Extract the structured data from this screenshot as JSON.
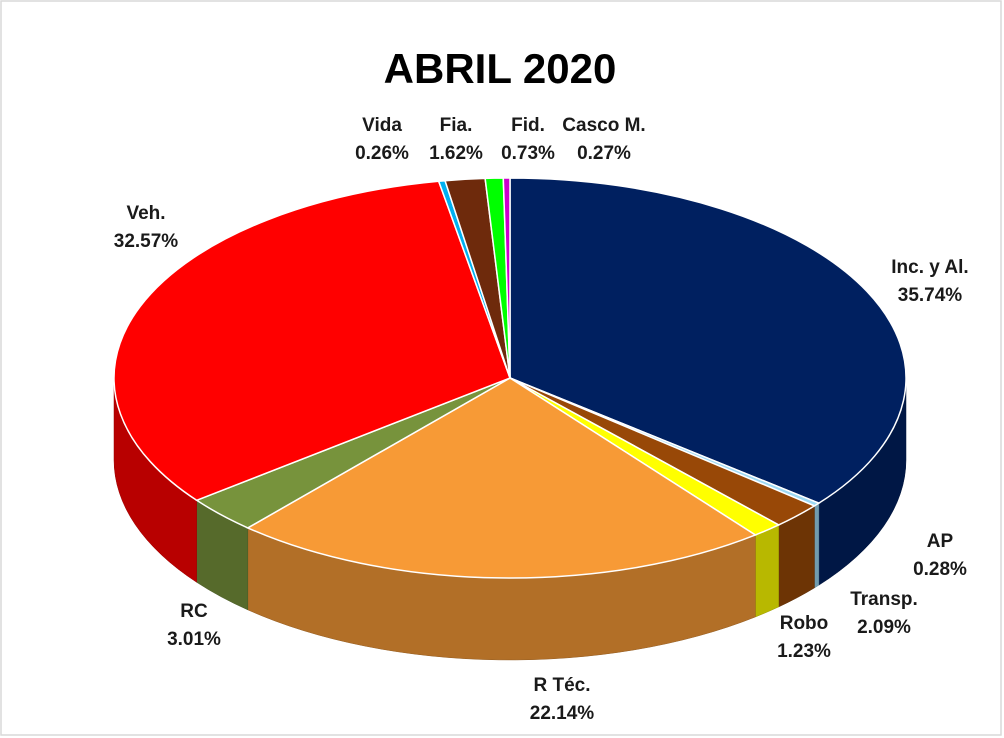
{
  "chart_data": {
    "type": "pie",
    "title": "ABRIL 2020",
    "categories": [
      "Inc. y Al.",
      "AP",
      "Transp.",
      "Robo",
      "R Téc.",
      "RC",
      "Veh.",
      "Vida",
      "Fia.",
      "Fid.",
      "Casco M."
    ],
    "values": [
      35.74,
      0.28,
      2.09,
      1.23,
      22.14,
      3.01,
      32.57,
      0.26,
      1.62,
      0.73,
      0.27
    ],
    "value_labels": [
      "35.74%",
      "0.28%",
      "2.09%",
      "1.23%",
      "22.14%",
      "3.01%",
      "32.57%",
      "0.26%",
      "1.62%",
      "0.73%",
      "0.27%"
    ],
    "colors": [
      "#002060",
      "#9DD9F3",
      "#984807",
      "#FFFF00",
      "#F79A36",
      "#77933C",
      "#FF0000",
      "#00B0F0",
      "#6E2A0C",
      "#00FF00",
      "#CC00CC"
    ]
  }
}
